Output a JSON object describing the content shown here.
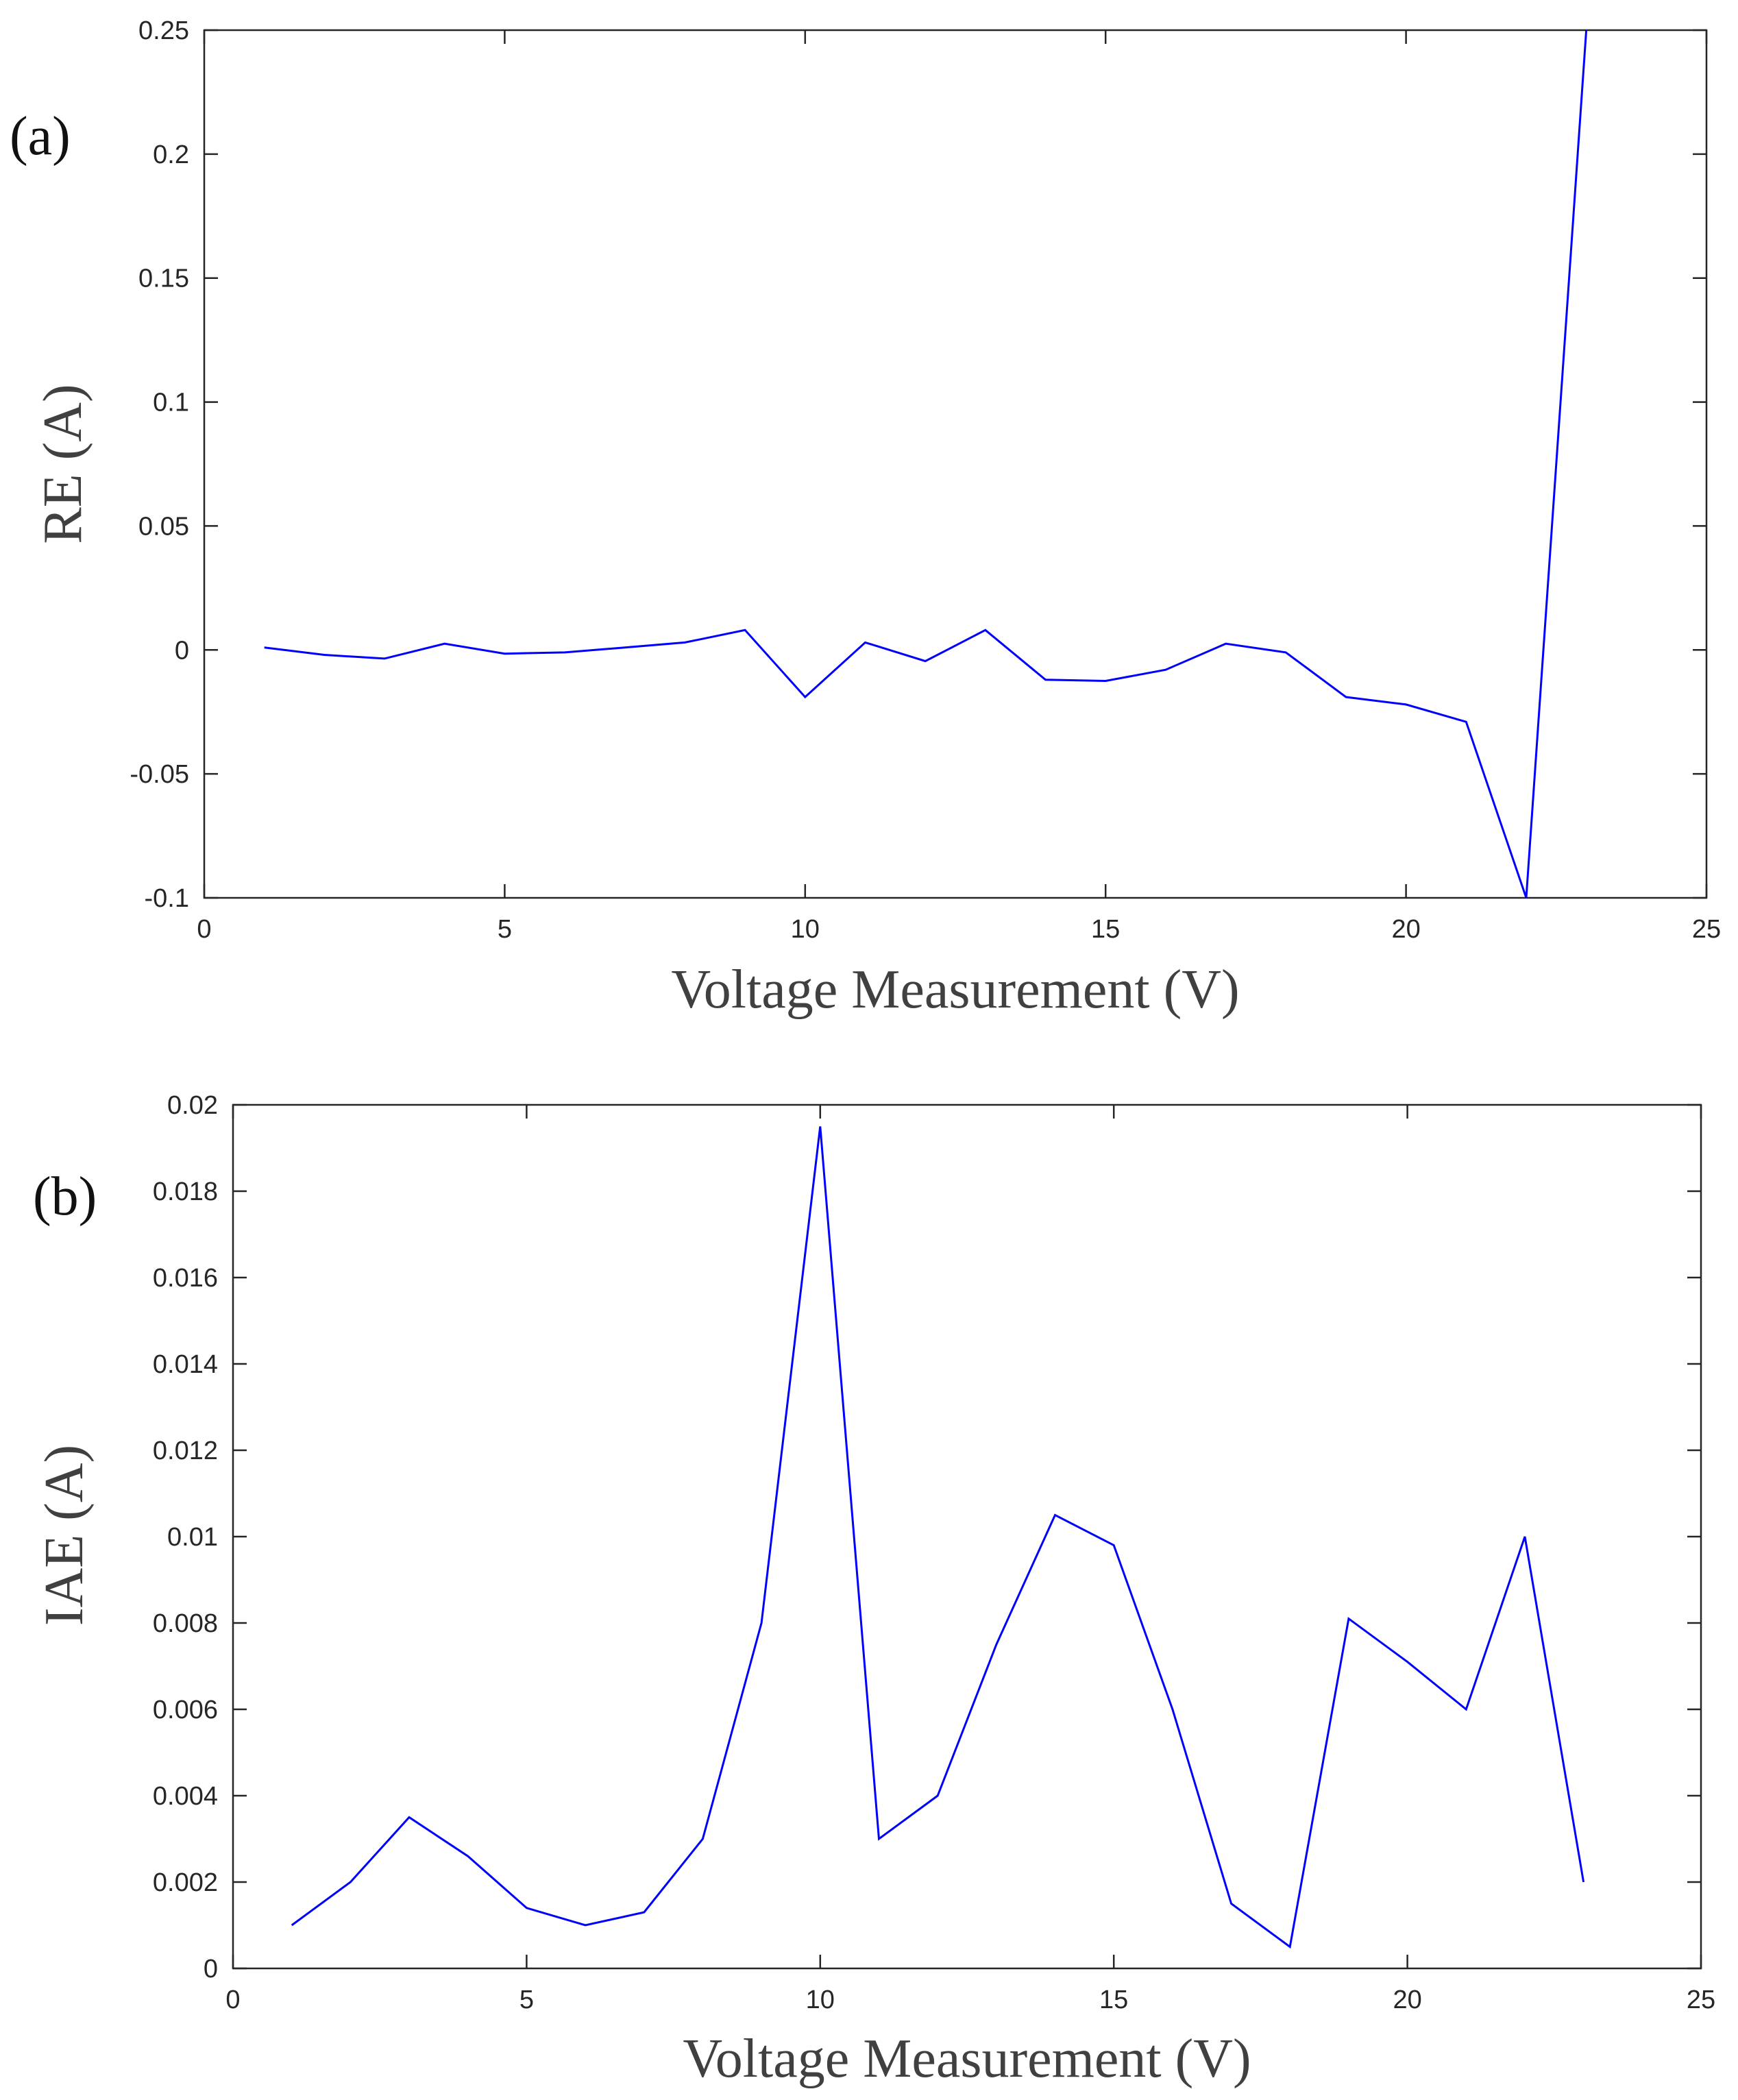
{
  "chart_data": [
    {
      "type": "line",
      "panel_label": "(a)",
      "xlabel": "Voltage Measurement (V)",
      "ylabel": "RE (A)",
      "xlim": [
        0,
        25
      ],
      "ylim": [
        -0.1,
        0.25
      ],
      "xticks": [
        "0",
        "5",
        "10",
        "15",
        "20",
        "25"
      ],
      "yticks": [
        "-0.1",
        "-0.05",
        "0",
        "0.05",
        "0.1",
        "0.15",
        "0.2",
        "0.25"
      ],
      "grid": false,
      "series": [
        {
          "name": "RE",
          "color": "#0000ff",
          "x": [
            1,
            2,
            3,
            4,
            5,
            6,
            7,
            8,
            9,
            10,
            11,
            12,
            13,
            14,
            15,
            16,
            17,
            18,
            19,
            20,
            21,
            22,
            23
          ],
          "y": [
            0.001,
            -0.002,
            -0.0035,
            0.0025,
            -0.0015,
            -0.001,
            0.001,
            0.003,
            0.008,
            -0.019,
            0.003,
            -0.0045,
            0.008,
            -0.012,
            -0.0125,
            -0.008,
            0.0025,
            -0.001,
            -0.019,
            -0.022,
            -0.029,
            -0.1,
            0.25
          ]
        }
      ]
    },
    {
      "type": "line",
      "panel_label": "(b)",
      "xlabel": "Voltage Measurement (V)",
      "ylabel": "IAE (A)",
      "xlim": [
        0,
        25
      ],
      "ylim": [
        0,
        0.02
      ],
      "xticks": [
        "0",
        "5",
        "10",
        "15",
        "20",
        "25"
      ],
      "yticks": [
        "0",
        "0.002",
        "0.004",
        "0.006",
        "0.008",
        "0.01",
        "0.012",
        "0.014",
        "0.016",
        "0.018",
        "0.02"
      ],
      "grid": false,
      "series": [
        {
          "name": "IAE",
          "color": "#0000ff",
          "x": [
            1,
            2,
            3,
            4,
            5,
            6,
            7,
            8,
            9,
            10,
            11,
            12,
            13,
            14,
            15,
            16,
            17,
            18,
            19,
            20,
            21,
            22,
            23
          ],
          "y": [
            0.001,
            0.002,
            0.0035,
            0.0026,
            0.0014,
            0.001,
            0.0013,
            0.003,
            0.008,
            0.0195,
            0.003,
            0.004,
            0.0075,
            0.0105,
            0.0098,
            0.006,
            0.0015,
            0.0005,
            0.0081,
            0.0071,
            0.006,
            0.01,
            0.002
          ]
        }
      ]
    }
  ]
}
